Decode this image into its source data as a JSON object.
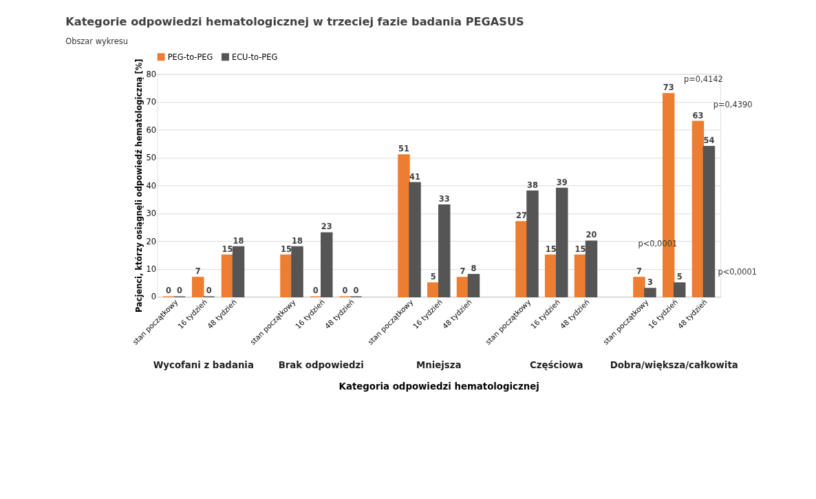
{
  "chart_data": {
    "type": "bar",
    "title": "Kategorie odpowiedzi hematologicznej w trzeciej fazie badania PEGASUS",
    "xlabel": "Kategoria odpowiedzi hematologicznej",
    "ylabel": "Pacjenci, którzy osiągnęli odpowiedź hematologiczną [%]",
    "categories": [
      "stan początkowy",
      "16 tydzień",
      "48 tydzień",
      "stan początkowy",
      "16 tydzień",
      "48 tydzień",
      "stan początkowy",
      "16 tydzień",
      "48 tydzień",
      "stan początkowy",
      "16 tydzień",
      "48 tydzień",
      "stan początkowy",
      "16 tydzień",
      "48 tydzień"
    ],
    "series": [
      {
        "name": "PEG-to-PEG",
        "color": "#ed7d31",
        "values": [
          0,
          7,
          15,
          15,
          0,
          0,
          51,
          5,
          7,
          27,
          15,
          15,
          7,
          73,
          63
        ]
      },
      {
        "name": "ECU-to-PEG",
        "color": "#555555",
        "values": [
          0,
          0,
          18,
          18,
          23,
          0,
          41,
          33,
          8,
          38,
          39,
          20,
          3,
          5,
          54
        ]
      }
    ],
    "annotations": [
      "Wycofani z badania",
      "Brak odpowiedzi",
      "Mniejsza",
      "Częściowa",
      "Dobra/większa/całkowita",
      "Obszar wykresu",
      "p=0,4142",
      "p=0,4390",
      "p<0,0001",
      "p<0,0001"
    ],
    "ylim": [
      0,
      80
    ],
    "yticks": [
      0,
      10,
      20,
      30,
      40,
      50,
      60,
      70,
      80
    ],
    "grid": "y",
    "legend": "top",
    "data_labels": true
  }
}
